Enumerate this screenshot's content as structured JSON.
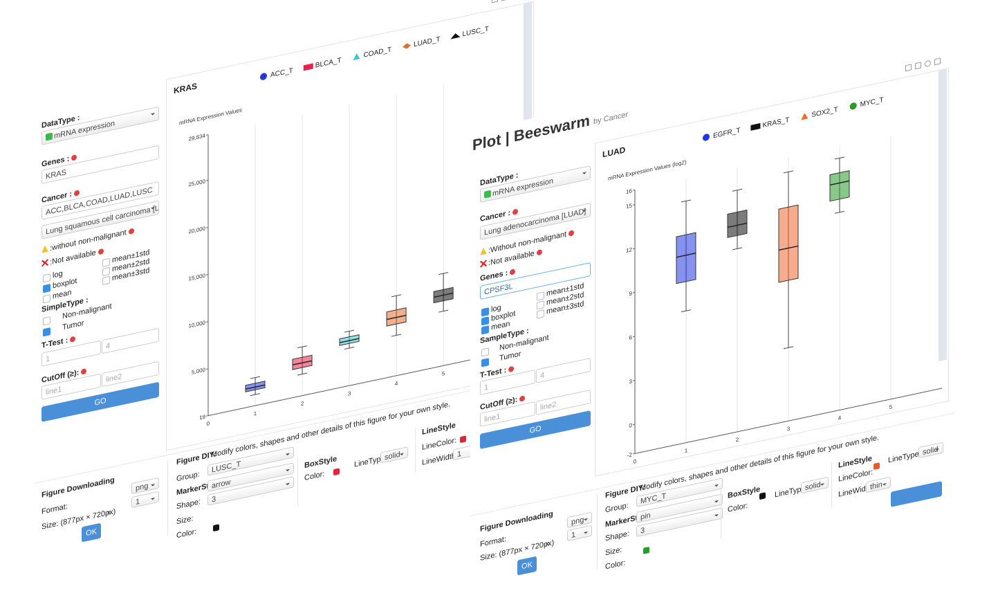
{
  "page_title": "Plot | Beeswarm",
  "page_subtitle": "by Cancer",
  "panels": [
    {
      "data_type_label": "DataType :",
      "data_type": "mRNA expression",
      "genes_label": "Genes :",
      "genes": "KRAS",
      "cancer_label": "Cancer :",
      "cancer_list": "ACC,BLCA,COAD,LUAD,LUSC",
      "cancer_select": "Lung squamous cell carcinoma [LUSC",
      "note_without": ":without non-malignant",
      "note_not_available": ":Not available",
      "options": [
        {
          "label": "log",
          "checked": false
        },
        {
          "label": "boxplot",
          "checked": true
        },
        {
          "label": "mean",
          "checked": false
        }
      ],
      "std_options": [
        {
          "label": "mean±1std",
          "checked": false
        },
        {
          "label": "mean±2std",
          "checked": false
        },
        {
          "label": "mean±3std",
          "checked": false
        }
      ],
      "sample_type_label": "SimpleType :",
      "sample_types": [
        {
          "label": "Non-malignant",
          "checked": false
        },
        {
          "label": "Tumor",
          "checked": true
        }
      ],
      "ttest_label": "T-Test :",
      "ttest_inputs": [
        "1",
        "4"
      ],
      "cutoff_label": "CutOff (≥):",
      "cutoff_inputs": [
        "line1",
        "line2"
      ],
      "go": "GO",
      "download": {
        "title": "Figure Downloading",
        "format_label": "Format:",
        "format": "png",
        "scale": "1",
        "size": "Size: (877px × 720px)",
        "close": "×",
        "ok": "OK"
      },
      "diy": {
        "title": "Figure DIY:",
        "description": "Modify colors, shapes and other details of this figure for your own style.",
        "group_label": "Group:",
        "group": "LUSC_T",
        "marker_title": "MarkerStyle",
        "shape_label": "Shape:",
        "shape": "arrow",
        "size_label": "Size:",
        "size": "3",
        "marker_color_label": "Color:",
        "marker_color": "#111111",
        "box_title": "BoxStyle",
        "box_color_label": "Color:",
        "box_color": "#e8203a",
        "box_line_type_label": "LineType:",
        "box_line_type": "solid",
        "line_title": "LineStyle",
        "line_color_label": "LineColor:",
        "line_color": "#e8203a",
        "line_width_label": "LineWidth:",
        "line_width": "1"
      }
    },
    {
      "data_type_label": "DataType :",
      "data_type": "mRNA expression",
      "cancer_label": "Cancer :",
      "cancer_select": "Lung adenocarcinoma [LUAD]",
      "note_without": ":Without non-malignant",
      "note_not_available": ":Not available",
      "genes_label": "Genes :",
      "genes": "CPSF3L",
      "options": [
        {
          "label": "log",
          "checked": true
        },
        {
          "label": "boxplot",
          "checked": true
        },
        {
          "label": "mean",
          "checked": true
        }
      ],
      "std_options": [
        {
          "label": "mean±1std",
          "checked": false
        },
        {
          "label": "mean±2std",
          "checked": false
        },
        {
          "label": "mean±3std",
          "checked": false
        }
      ],
      "sample_type_label": "SampleType :",
      "sample_types": [
        {
          "label": "Non-malignant",
          "checked": false
        },
        {
          "label": "Tumor",
          "checked": true
        }
      ],
      "ttest_label": "T-Test :",
      "ttest_inputs": [
        "1",
        "4"
      ],
      "cutoff_label": "CutOff (≥):",
      "cutoff_inputs": [
        "line1",
        "line2"
      ],
      "go": "GO",
      "download": {
        "title": "Figure Downloading",
        "format_label": "Format:",
        "format": "png",
        "scale": "1",
        "size": "Size: (877px × 720px)",
        "close": "×",
        "ok": "OK"
      },
      "diy": {
        "title": "Figure DIY:",
        "description": "Modify colors, shapes and other details of this figure for your own style.",
        "group_label": "Group:",
        "group": "MYC_T",
        "marker_title": "MarkerStyle",
        "shape_label": "Shape:",
        "shape": "pin",
        "size_label": "Size:",
        "size": "3",
        "marker_color_label": "Color:",
        "marker_color": "#2a9a2a",
        "box_title": "BoxStyle",
        "box_color_label": "Color:",
        "box_color": "#111111",
        "box_line_type_label": "LineType:",
        "box_line_type": "solid",
        "line_title": "LineStyle",
        "line_color_label": "LineColor:",
        "line_color": "#f05a28",
        "line_type_label": "LineType:",
        "line_type": "solid",
        "line_width_label": "LineWidth:",
        "line_width": "thin"
      }
    }
  ],
  "chart_data": [
    {
      "type": "box",
      "title": "KRAS",
      "y_label": "mRNA Expression Values",
      "grid": true,
      "xlim": [
        0,
        6.6
      ],
      "xticks": [
        0,
        1,
        2,
        3,
        4,
        5
      ],
      "ylim": [
        19,
        29834
      ],
      "yticks": [
        19,
        {
          "value": 5000,
          "label": "5,000"
        },
        {
          "value": 10000,
          "label": "10,000"
        },
        {
          "value": 15000,
          "label": "15,000"
        },
        {
          "value": 20000,
          "label": "20,000"
        },
        {
          "value": 25000,
          "label": "25,000"
        },
        {
          "value": 29834,
          "label": "29,834"
        }
      ],
      "series": [
        {
          "name": "ACC_T",
          "color": "#2038e0",
          "marker": "circle",
          "x": 1,
          "whisker_low": 1200,
          "q1": 1700,
          "median": 2000,
          "q3": 2400,
          "whisker_high": 3000
        },
        {
          "name": "BLCA_T",
          "color": "#e8204a",
          "marker": "rect",
          "x": 2,
          "whisker_low": 2300,
          "q1": 3000,
          "median": 3500,
          "q3": 4100,
          "whisker_high": 5200
        },
        {
          "name": "COAD_T",
          "color": "#3cc8d0",
          "marker": "triangle",
          "x": 3,
          "whisker_low": 4000,
          "q1": 4500,
          "median": 4800,
          "q3": 5200,
          "whisker_high": 5800
        },
        {
          "name": "LUAD_T",
          "color": "#e07030",
          "marker": "diamond",
          "x": 4,
          "whisker_low": 4300,
          "q1": 5500,
          "median": 6200,
          "q3": 7000,
          "whisker_high": 8500
        },
        {
          "name": "LUSC_T",
          "color": "#111111",
          "marker": "arrow",
          "x": 5,
          "whisker_low": 5800,
          "q1": 6900,
          "median": 7500,
          "q3": 8100,
          "whisker_high": 9800
        }
      ]
    },
    {
      "type": "box",
      "title": "LUAD",
      "y_label": "mRNA Expression Values (log2)",
      "grid": true,
      "xlim": [
        0,
        6
      ],
      "xticks": [
        0,
        1,
        2,
        3,
        4,
        5
      ],
      "ylim": [
        -2,
        16
      ],
      "yticks": [
        -2,
        0,
        3,
        6,
        9,
        12,
        15,
        16
      ],
      "series": [
        {
          "name": "EGFR_T",
          "color": "#2038e0",
          "marker": "circle",
          "x": 1,
          "whisker_low": 7,
          "q1": 9,
          "median": 10.8,
          "q3": 12.2,
          "whisker_high": 14.5
        },
        {
          "name": "KRAS_T",
          "color": "#111111",
          "marker": "rect",
          "x": 2,
          "whisker_low": 10.5,
          "q1": 11.4,
          "median": 12.1,
          "q3": 13,
          "whisker_high": 14.5
        },
        {
          "name": "SOX2_T",
          "color": "#f06a30",
          "marker": "triangle",
          "x": 3,
          "whisker_low": 3,
          "q1": 7.6,
          "median": 9.8,
          "q3": 12.6,
          "whisker_high": 15
        },
        {
          "name": "MYC_T",
          "color": "#2a9a2a",
          "marker": "circle",
          "x": 4,
          "whisker_low": 11.5,
          "q1": 12.4,
          "median": 13.5,
          "q3": 14.2,
          "whisker_high": 15.2
        }
      ]
    }
  ]
}
